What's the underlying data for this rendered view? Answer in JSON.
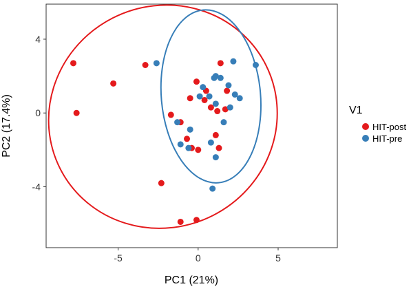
{
  "chart_data": {
    "type": "scatter",
    "xlabel": "PC1 (21%)",
    "ylabel": "PC2 (17.4%)",
    "xlim": [
      -9.5,
      8.7
    ],
    "ylim": [
      -7.3,
      5.9
    ],
    "x_ticks": [
      -5,
      0,
      5
    ],
    "x_tick_labels": [
      "-5",
      "0",
      "5"
    ],
    "y_ticks": [
      -4,
      0,
      4
    ],
    "y_tick_labels": [
      "-4",
      "0",
      "4"
    ],
    "grid": false,
    "legend": {
      "title": "V1",
      "position": "right"
    },
    "series": [
      {
        "name": "HIT-post",
        "color": "#e41a1c",
        "points": [
          [
            -7.8,
            2.7
          ],
          [
            -7.6,
            0.0
          ],
          [
            -5.3,
            1.6
          ],
          [
            -3.3,
            2.6
          ],
          [
            -1.7,
            -0.1
          ],
          [
            -1.1,
            -0.5
          ],
          [
            -0.7,
            -1.4
          ],
          [
            -0.4,
            -1.9
          ],
          [
            -0.5,
            0.8
          ],
          [
            0.0,
            -2.0
          ],
          [
            -0.1,
            1.7
          ],
          [
            0.4,
            0.7
          ],
          [
            0.5,
            1.2
          ],
          [
            0.8,
            0.3
          ],
          [
            1.2,
            0.1
          ],
          [
            1.1,
            -1.2
          ],
          [
            1.3,
            -1.9
          ],
          [
            1.4,
            2.7
          ],
          [
            1.8,
            1.2
          ],
          [
            1.7,
            0.2
          ],
          [
            -2.3,
            -3.8
          ],
          [
            -1.1,
            -5.9
          ],
          [
            -0.1,
            -5.8
          ]
        ]
      },
      {
        "name": "HIT-pre",
        "color": "#377eb8",
        "points": [
          [
            -2.6,
            2.7
          ],
          [
            -1.3,
            -0.5
          ],
          [
            -1.1,
            -1.7
          ],
          [
            -0.6,
            -1.9
          ],
          [
            -0.5,
            -0.9
          ],
          [
            0.1,
            0.9
          ],
          [
            0.3,
            1.4
          ],
          [
            0.7,
            0.9
          ],
          [
            0.8,
            -1.6
          ],
          [
            1.0,
            1.9
          ],
          [
            1.1,
            2.0
          ],
          [
            1.1,
            -2.4
          ],
          [
            1.1,
            0.5
          ],
          [
            1.4,
            1.9
          ],
          [
            1.6,
            -0.5
          ],
          [
            1.9,
            1.5
          ],
          [
            2.0,
            0.3
          ],
          [
            2.2,
            2.8
          ],
          [
            2.3,
            1.0
          ],
          [
            2.6,
            0.8
          ],
          [
            3.6,
            2.6
          ],
          [
            0.9,
            -4.1
          ]
        ]
      }
    ],
    "ellipses": [
      {
        "series": "HIT-post",
        "center": [
          -2.2,
          -0.2
        ],
        "rx": 7.2,
        "ry": 6.0,
        "rotation_deg": -27
      },
      {
        "series": "HIT-pre",
        "center": [
          0.8,
          0.9
        ],
        "rx": 3.1,
        "ry": 4.7,
        "rotation_deg": -5
      }
    ]
  }
}
